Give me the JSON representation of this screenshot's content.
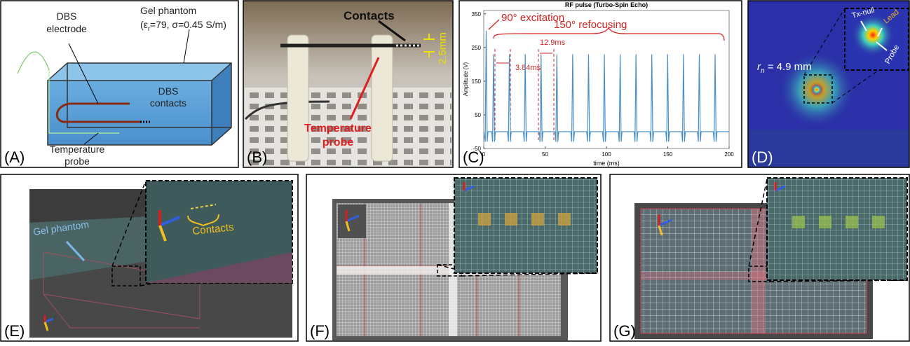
{
  "panels": {
    "a": {
      "label": "(A)",
      "electrode": [
        "DBS",
        "electrode"
      ],
      "gel": "Gel phantom",
      "gel_params": {
        "pre": "(ε",
        "sub": "r",
        "post": "=79, σ=0.45 S/m)"
      },
      "contacts": [
        "DBS",
        "contacts"
      ],
      "probe": [
        "Temperature",
        "probe"
      ]
    },
    "b": {
      "label": "(B)",
      "contacts": "Contacts",
      "gap": "2.5mm",
      "probe": [
        "Temperature",
        "probe"
      ]
    },
    "c": {
      "label": "(C)"
    },
    "d": {
      "label": "(D)",
      "radius": {
        "pre": "r",
        "sub": "n",
        "post": " = 4.9 mm"
      },
      "txnull": "Tx-null",
      "lead": "Lead",
      "probe": "Probe"
    },
    "e": {
      "label": "(E)",
      "gel": "Gel phantom",
      "contacts": "Contacts"
    },
    "f": {
      "label": "(F)"
    },
    "g": {
      "label": "(G)"
    }
  },
  "chart_data": {
    "type": "line",
    "title": "RF pulse (Turbo-Spin Echo)",
    "x_label": "time (ms)",
    "y_label": "Amplitude (V)",
    "annotations": [
      "90° excitation",
      "150° refocusing",
      "3.84ms",
      "12.9ms"
    ],
    "xlim": [
      0,
      200
    ],
    "xticks": [
      0,
      50,
      100,
      150,
      200
    ],
    "ylim": [
      -50,
      360
    ],
    "yticks": [
      -50,
      50,
      150,
      250,
      350
    ],
    "grid": false,
    "series": [
      {
        "color": "#4a90c8",
        "x": [
          0,
          1.2,
          2,
          2.8,
          3.5,
          6.5,
          7.2,
          8,
          8.8,
          9.5,
          19.4,
          20.1,
          20.9,
          21.7,
          22.4,
          32.3,
          33,
          33.8,
          34.6,
          35.3,
          45.2,
          45.9,
          46.7,
          47.5,
          48.2,
          58.1,
          58.8,
          59.6,
          60.4,
          61.1,
          71,
          71.7,
          72.5,
          73.3,
          74,
          83.9,
          84.6,
          85.4,
          86.2,
          86.9,
          96.8,
          97.5,
          98.3,
          99.1,
          99.8,
          109.7,
          110.4,
          111.2,
          112,
          112.7,
          122.6,
          123.3,
          124.1,
          124.9,
          125.6,
          135.5,
          136.2,
          137,
          137.8,
          138.5,
          148.4,
          149.1,
          149.9,
          150.7,
          151.4,
          161.3,
          162,
          162.8,
          163.6,
          164.3,
          174.2,
          174.9,
          175.7,
          176.5,
          177.2,
          187.1,
          187.8,
          188.6,
          189.4,
          190.1,
          200
        ],
        "values": [
          0,
          -30,
          300,
          -30,
          0,
          0,
          -30,
          230,
          -30,
          0,
          0,
          -30,
          230,
          -30,
          0,
          0,
          -30,
          230,
          -30,
          0,
          0,
          -30,
          230,
          -30,
          0,
          0,
          -30,
          230,
          -30,
          0,
          0,
          -30,
          230,
          -30,
          0,
          0,
          -30,
          230,
          -30,
          0,
          0,
          -30,
          230,
          -30,
          0,
          0,
          -30,
          230,
          -30,
          0,
          0,
          -30,
          230,
          -30,
          0,
          0,
          -30,
          230,
          -30,
          0,
          0,
          -30,
          230,
          -30,
          0,
          0,
          -30,
          230,
          -30,
          0,
          0,
          -30,
          230,
          -30,
          0,
          0,
          -30,
          230,
          -30,
          0,
          0
        ]
      }
    ]
  }
}
